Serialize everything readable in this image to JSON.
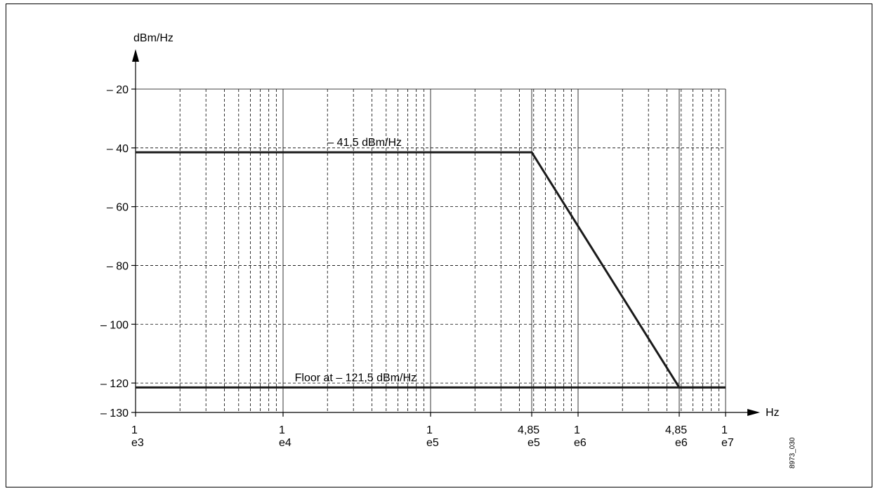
{
  "chart_data": {
    "type": "line",
    "title": "",
    "xlabel": "Hz",
    "ylabel": "dBm/Hz",
    "x_scale": "log",
    "xlim": [
      1000,
      10000000
    ],
    "ylim": [
      -130,
      -20
    ],
    "grid": true,
    "y_ticks": [
      {
        "value": -20,
        "label": "– 20"
      },
      {
        "value": -40,
        "label": "– 40"
      },
      {
        "value": -60,
        "label": "– 60"
      },
      {
        "value": -80,
        "label": "– 80"
      },
      {
        "value": -100,
        "label": "– 100"
      },
      {
        "value": -120,
        "label": "– 120"
      },
      {
        "value": -130,
        "label": "– 130"
      }
    ],
    "x_ticks": [
      {
        "value": 1000,
        "mant": "1",
        "exp": "e3"
      },
      {
        "value": 10000,
        "mant": "1",
        "exp": "e4"
      },
      {
        "value": 100000,
        "mant": "1",
        "exp": "e5"
      },
      {
        "value": 485000,
        "mant": "4,85",
        "exp": "e5"
      },
      {
        "value": 1000000,
        "mant": "1",
        "exp": "e6"
      },
      {
        "value": 4850000,
        "mant": "4,85",
        "exp": "e6"
      },
      {
        "value": 10000000,
        "mant": "1",
        "exp": "e7"
      }
    ],
    "series": [
      {
        "x": [
          1000,
          485000,
          4850000,
          10000000
        ],
        "y": [
          -41.5,
          -41.5,
          -121.5,
          -121.5
        ]
      },
      {
        "x": [
          1000,
          10000000
        ],
        "y": [
          -121.5,
          -121.5
        ]
      }
    ],
    "annotations": [
      {
        "text": "– 41,5 dBm/Hz",
        "x": 20000,
        "y": -41.5
      },
      {
        "text": "Floor at  – 121,5 dBm/Hz",
        "x": 12000,
        "y": -121.5
      }
    ],
    "side_label": "8973_030"
  }
}
